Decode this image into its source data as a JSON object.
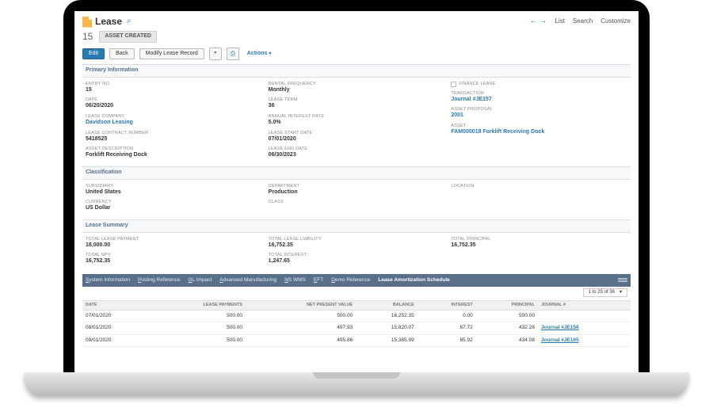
{
  "header": {
    "title": "Lease",
    "nav_prev": "←",
    "nav_next": "→",
    "nav_list": "List",
    "nav_search": "Search",
    "nav_customize": "Customize",
    "record_id": "15",
    "status_badge": "ASSET CREATED"
  },
  "buttons": {
    "edit": "Edit",
    "back": "Back",
    "modify": "Modify Lease Record",
    "actions": "Actions"
  },
  "sections": {
    "primary": "Primary Information",
    "classification": "Classification",
    "summary": "Lease Summary"
  },
  "primary": {
    "entry_no_lbl": "ENTRY NO.",
    "entry_no": "15",
    "date_lbl": "DATE",
    "date": "06/20/2020",
    "lease_company_lbl": "LEASE COMPANY",
    "lease_company": "Davidson Leasing",
    "contract_no_lbl": "LEASE CONTRACT NUMBER",
    "contract_no": "5418525",
    "asset_desc_lbl": "ASSET DESCRIPTION",
    "asset_desc": "Forklift Receiving Dock",
    "rental_freq_lbl": "RENTAL FREQUENCY",
    "rental_freq": "Monthly",
    "lease_term_lbl": "LEASE TERM",
    "lease_term": "36",
    "air_lbl": "ANNUAL INTEREST RATE",
    "air": "5.0%",
    "start_lbl": "LEASE START DATE",
    "start": "07/01/2020",
    "end_lbl": "LEASE END DATE",
    "end": "06/30/2023",
    "finance_lbl": "FINANCE LEASE",
    "txn_lbl": "TRANSACTION",
    "txn": "Journal #JE157",
    "proposal_lbl": "ASSET PROPOSAL",
    "proposal": "2001",
    "asset_lbl": "ASSET",
    "asset": "FAM000018 Forklift Receiving Dock"
  },
  "classification": {
    "subsidiary_lbl": "SUBSIDIARY",
    "subsidiary": "United States",
    "currency_lbl": "CURRENCY",
    "currency": "US Dollar",
    "department_lbl": "DEPARTMENT",
    "department": "Production",
    "class_lbl": "CLASS",
    "class": "",
    "location_lbl": "LOCATION",
    "location": ""
  },
  "summary": {
    "total_payment_lbl": "TOTAL LEASE PAYMENT",
    "total_payment": "18,000.00",
    "npv_lbl": "TOTAL NPV",
    "npv": "16,752.35",
    "liability_lbl": "TOTAL LEASE LIABILITY",
    "liability": "16,752.35",
    "interest_lbl": "TOTAL INTEREST",
    "interest": "1,247.65",
    "principal_lbl": "TOTAL PRINCIPAL",
    "principal": "16,752.35"
  },
  "tabs": {
    "items": [
      "System Information",
      "Posting Reference",
      "GL Impact",
      "Advanced Manufacturing",
      "NS WMS",
      "EFT",
      "Demo Reference",
      "Lease Amortization Schedule"
    ],
    "active_index": 7
  },
  "pager": "1 to 25 of 36",
  "table": {
    "cols": [
      "DATE",
      "LEASE PAYMENTS",
      "NET PRESENT VALUE",
      "BALANCE",
      "INTEREST",
      "PRINCIPAL",
      "JOURNAL #"
    ],
    "rows": [
      {
        "date": "07/01/2020",
        "pay": "500.00",
        "npv": "500.00",
        "bal": "16,252.35",
        "int": "0.00",
        "prin": "500.00",
        "jrnl": ""
      },
      {
        "date": "08/01/2020",
        "pay": "500.00",
        "npv": "497.93",
        "bal": "15,820.07",
        "int": "67.72",
        "prin": "432.28",
        "jrnl": "Journal #JE158"
      },
      {
        "date": "09/01/2020",
        "pay": "500.00",
        "npv": "495.86",
        "bal": "15,385.99",
        "int": "65.92",
        "prin": "434.08",
        "jrnl": "Journal #JE165"
      }
    ]
  }
}
